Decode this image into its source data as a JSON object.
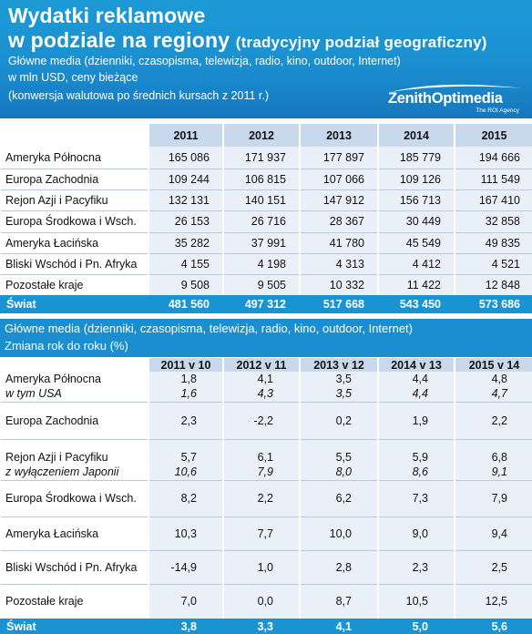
{
  "header": {
    "title_line1": "Wydatki reklamowe",
    "title_line2": "w podziale na regiony",
    "title_sub": "(tradycyjny podział geograficzny)",
    "line1": "Główne media (dzienniki, czasopisma, telewizja, radio, kino, outdoor, Internet)",
    "line2": "w mln USD, ceny bieżące",
    "line3": "(konwersja walutowa po średnich kursach z 2011 r.)"
  },
  "logo": {
    "name": "ZenithOptimedia",
    "agency": "The ROI Agency",
    "color": "#ffffff"
  },
  "table1": {
    "columns": [
      "2011",
      "2012",
      "2013",
      "2014",
      "2015"
    ],
    "rows": [
      {
        "label": "Ameryka Północna",
        "values": [
          "165 086",
          "171 937",
          "177 897",
          "185 779",
          "194 666"
        ]
      },
      {
        "label": "Europa Zachodnia",
        "values": [
          "109 244",
          "106 815",
          "107 066",
          "109 126",
          "111 549"
        ]
      },
      {
        "label": "Rejon Azji i Pacyfiku",
        "values": [
          "132 131",
          "140 151",
          "147 912",
          "156 713",
          "167 410"
        ]
      },
      {
        "label": "Europa Środkowa i Wsch.",
        "values": [
          "26 153",
          "26 716",
          "28 367",
          "30 449",
          "32 858"
        ]
      },
      {
        "label": "Ameryka Łacińska",
        "values": [
          "35 282",
          "37 991",
          "41 780",
          "45 549",
          "49 835"
        ]
      },
      {
        "label": "Bliski Wschód i Pn. Afryka",
        "values": [
          "4 155",
          "4 198",
          "4 313",
          "4 412",
          "4 521"
        ]
      },
      {
        "label": "Pozostałe kraje",
        "values": [
          "9 508",
          "9 505",
          "10 332",
          "11 422",
          "12 848"
        ]
      }
    ],
    "total": {
      "label": "Świat",
      "values": [
        "481 560",
        "497 312",
        "517 668",
        "543 450",
        "573 686"
      ]
    }
  },
  "section2": {
    "line1": "Główne media (dzienniki, czasopisma, telewizja, radio, kino, outdoor, Internet)",
    "line2": "Zmiana rok do roku (%)"
  },
  "table2": {
    "columns": [
      "2011 v 10",
      "2012 v 11",
      "2013 v 12",
      "2014 v 13",
      "2015 v 14"
    ],
    "rows": [
      {
        "label": "Ameryka Północna",
        "values": [
          "1,8",
          "4,1",
          "3,5",
          "4,4",
          "4,8"
        ]
      },
      {
        "label": "w tym USA",
        "values": [
          "1,6",
          "4,3",
          "3,5",
          "4,4",
          "4,7"
        ]
      },
      {
        "label": "Europa Zachodnia",
        "values": [
          "2,3",
          "-2,2",
          "0,2",
          "1,9",
          "2,2"
        ]
      },
      {
        "label": "Rejon Azji i Pacyfiku",
        "values": [
          "5,7",
          "6,1",
          "5,5",
          "5,9",
          "6,8"
        ]
      },
      {
        "label": "z wyłączeniem Japonii",
        "values": [
          "10,6",
          "7,9",
          "8,0",
          "8,6",
          "9,1"
        ]
      },
      {
        "label": "Europa Środkowa i Wsch.",
        "values": [
          "8,2",
          "2,2",
          "6,2",
          "7,3",
          "7,9"
        ]
      },
      {
        "label": "Ameryka Łacińska",
        "values": [
          "10,3",
          "7,7",
          "10,0",
          "9,0",
          "9,4"
        ]
      },
      {
        "label": "Bliski Wschód i Pn. Afryka",
        "values": [
          "-14,9",
          "1,0",
          "2,8",
          "2,3",
          "2,5"
        ]
      },
      {
        "label": "Pozostałe kraje",
        "values": [
          "7,0",
          "0,0",
          "8,7",
          "10,5",
          "12,5"
        ]
      }
    ],
    "total": {
      "label": "Świat",
      "values": [
        "3,8",
        "3,3",
        "4,1",
        "5,0",
        "5,6"
      ]
    }
  },
  "colors": {
    "header_blue": "#1a8fd0",
    "column_header": "#c8d9ee",
    "cell_bg": "#e9f0f8",
    "total_bg": "#1a93d3"
  }
}
